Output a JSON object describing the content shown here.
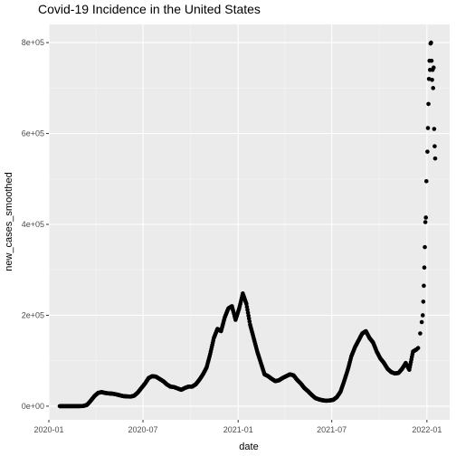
{
  "chart_data": {
    "type": "scatter",
    "title": "Covid-19 Incidence in the United States",
    "xlabel": "date",
    "ylabel": "new_cases_smoothed",
    "x_ticks": [
      "2020-01",
      "2020-07",
      "2021-01",
      "2021-07",
      "2022-01"
    ],
    "y_ticks": [
      "0e+00",
      "2e+05",
      "4e+05",
      "6e+05",
      "8e+05"
    ],
    "xlim": [
      "2020-01-01",
      "2022-02-14"
    ],
    "ylim": [
      -30000,
      840000
    ],
    "grid": true,
    "panel_background": "#ebebeb",
    "point_color": "#000000",
    "series": [
      {
        "points": [
          [
            "2020-01-22",
            0
          ],
          [
            "2020-02-05",
            0
          ],
          [
            "2020-02-19",
            0
          ],
          [
            "2020-03-01",
            100
          ],
          [
            "2020-03-08",
            500
          ],
          [
            "2020-03-15",
            3000
          ],
          [
            "2020-03-22",
            12000
          ],
          [
            "2020-03-29",
            22000
          ],
          [
            "2020-04-05",
            29000
          ],
          [
            "2020-04-12",
            31000
          ],
          [
            "2020-04-19",
            29000
          ],
          [
            "2020-04-26",
            28000
          ],
          [
            "2020-05-03",
            27500
          ],
          [
            "2020-05-10",
            26000
          ],
          [
            "2020-05-17",
            24000
          ],
          [
            "2020-05-24",
            22000
          ],
          [
            "2020-05-31",
            21500
          ],
          [
            "2020-06-07",
            21000
          ],
          [
            "2020-06-14",
            23000
          ],
          [
            "2020-06-21",
            30000
          ],
          [
            "2020-06-28",
            40000
          ],
          [
            "2020-07-05",
            50000
          ],
          [
            "2020-07-12",
            62000
          ],
          [
            "2020-07-19",
            66000
          ],
          [
            "2020-07-26",
            65000
          ],
          [
            "2020-08-02",
            60000
          ],
          [
            "2020-08-09",
            55000
          ],
          [
            "2020-08-16",
            48000
          ],
          [
            "2020-08-23",
            43000
          ],
          [
            "2020-08-30",
            42000
          ],
          [
            "2020-09-06",
            39000
          ],
          [
            "2020-09-13",
            36000
          ],
          [
            "2020-09-20",
            40000
          ],
          [
            "2020-09-27",
            43000
          ],
          [
            "2020-10-04",
            43000
          ],
          [
            "2020-10-11",
            48000
          ],
          [
            "2020-10-18",
            58000
          ],
          [
            "2020-10-25",
            70000
          ],
          [
            "2020-11-01",
            85000
          ],
          [
            "2020-11-08",
            115000
          ],
          [
            "2020-11-15",
            150000
          ],
          [
            "2020-11-22",
            170000
          ],
          [
            "2020-11-29",
            165000
          ],
          [
            "2020-12-06",
            195000
          ],
          [
            "2020-12-13",
            215000
          ],
          [
            "2020-12-20",
            220000
          ],
          [
            "2020-12-27",
            190000
          ],
          [
            "2021-01-03",
            215000
          ],
          [
            "2021-01-10",
            248000
          ],
          [
            "2021-01-17",
            225000
          ],
          [
            "2021-01-24",
            180000
          ],
          [
            "2021-01-31",
            150000
          ],
          [
            "2021-02-07",
            120000
          ],
          [
            "2021-02-14",
            95000
          ],
          [
            "2021-02-21",
            70000
          ],
          [
            "2021-02-28",
            66000
          ],
          [
            "2021-03-07",
            60000
          ],
          [
            "2021-03-14",
            55000
          ],
          [
            "2021-03-21",
            57000
          ],
          [
            "2021-03-28",
            62000
          ],
          [
            "2021-04-04",
            66000
          ],
          [
            "2021-04-11",
            70000
          ],
          [
            "2021-04-18",
            68000
          ],
          [
            "2021-04-25",
            58000
          ],
          [
            "2021-05-02",
            50000
          ],
          [
            "2021-05-09",
            40000
          ],
          [
            "2021-05-16",
            33000
          ],
          [
            "2021-05-23",
            25000
          ],
          [
            "2021-05-30",
            18000
          ],
          [
            "2021-06-06",
            15000
          ],
          [
            "2021-06-13",
            13000
          ],
          [
            "2021-06-20",
            12000
          ],
          [
            "2021-06-27",
            12500
          ],
          [
            "2021-07-04",
            14000
          ],
          [
            "2021-07-11",
            20000
          ],
          [
            "2021-07-18",
            32000
          ],
          [
            "2021-07-25",
            55000
          ],
          [
            "2021-08-01",
            80000
          ],
          [
            "2021-08-08",
            110000
          ],
          [
            "2021-08-15",
            130000
          ],
          [
            "2021-08-22",
            145000
          ],
          [
            "2021-08-29",
            160000
          ],
          [
            "2021-09-05",
            165000
          ],
          [
            "2021-09-12",
            150000
          ],
          [
            "2021-09-19",
            140000
          ],
          [
            "2021-09-26",
            120000
          ],
          [
            "2021-10-03",
            105000
          ],
          [
            "2021-10-10",
            95000
          ],
          [
            "2021-10-17",
            82000
          ],
          [
            "2021-10-24",
            75000
          ],
          [
            "2021-10-31",
            72000
          ],
          [
            "2021-11-07",
            73000
          ],
          [
            "2021-11-14",
            82000
          ],
          [
            "2021-11-21",
            95000
          ],
          [
            "2021-11-28",
            80000
          ],
          [
            "2021-12-05",
            120000
          ],
          [
            "2021-12-12",
            125000
          ],
          [
            "2021-12-15",
            128000
          ],
          [
            "2021-12-19",
            160000
          ],
          [
            "2021-12-22",
            185000
          ],
          [
            "2021-12-24",
            200000
          ],
          [
            "2021-12-25",
            230000
          ],
          [
            "2021-12-26",
            265000
          ],
          [
            "2021-12-27",
            305000
          ],
          [
            "2021-12-28",
            350000
          ],
          [
            "2021-12-29",
            405000
          ],
          [
            "2021-12-30",
            415000
          ],
          [
            "2021-12-31",
            495000
          ],
          [
            "2022-01-02",
            560000
          ],
          [
            "2022-01-03",
            612000
          ],
          [
            "2022-01-04",
            665000
          ],
          [
            "2022-01-05",
            720000
          ],
          [
            "2022-01-06",
            760000
          ],
          [
            "2022-01-07",
            740000
          ],
          [
            "2022-01-08",
            798000
          ],
          [
            "2022-01-09",
            800000
          ],
          [
            "2022-01-10",
            760000
          ],
          [
            "2022-01-11",
            718000
          ],
          [
            "2022-01-12",
            740000
          ],
          [
            "2022-01-13",
            700000
          ],
          [
            "2022-01-14",
            745000
          ],
          [
            "2022-01-15",
            610000
          ],
          [
            "2022-01-16",
            572000
          ],
          [
            "2022-01-17",
            545000
          ]
        ]
      }
    ]
  }
}
